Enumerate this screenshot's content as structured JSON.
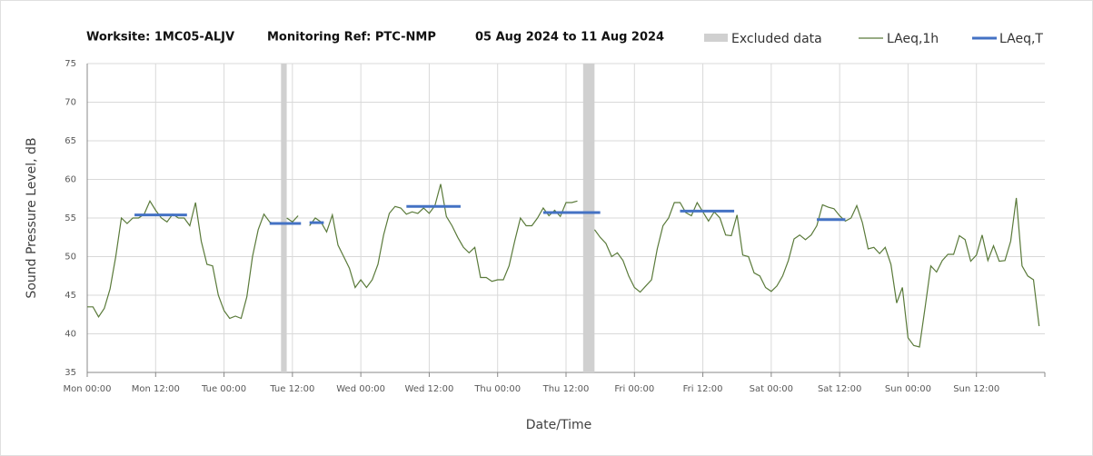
{
  "chart_data": {
    "type": "line",
    "title": "Worksite: 1MC05-ALJV",
    "subtitle": "Monitoring Ref: PTC-NMP",
    "period": "05 Aug 2024 to 11 Aug 2024",
    "xlabel": "Date/Time",
    "ylabel": "Sound Pressure Level, dB",
    "xlim": [
      0,
      168
    ],
    "ylim": [
      35,
      75
    ],
    "yticks": [
      35,
      40,
      45,
      50,
      55,
      60,
      65,
      70,
      75
    ],
    "xticks": [
      {
        "value": 0,
        "label": "Mon 00:00"
      },
      {
        "value": 12,
        "label": "Mon 12:00"
      },
      {
        "value": 24,
        "label": "Tue 00:00"
      },
      {
        "value": 36,
        "label": "Tue 12:00"
      },
      {
        "value": 48,
        "label": "Wed 00:00"
      },
      {
        "value": 60,
        "label": "Wed 12:00"
      },
      {
        "value": 72,
        "label": "Thu 00:00"
      },
      {
        "value": 84,
        "label": "Thu 12:00"
      },
      {
        "value": 96,
        "label": "Fri 00:00"
      },
      {
        "value": 108,
        "label": "Fri 12:00"
      },
      {
        "value": 120,
        "label": "Sat 00:00"
      },
      {
        "value": 132,
        "label": "Sat 12:00"
      },
      {
        "value": 144,
        "label": "Sun 00:00"
      },
      {
        "value": 156,
        "label": "Sun 12:00"
      }
    ],
    "grid": true,
    "legend": "top",
    "excluded": {
      "name": "Excluded data",
      "color": "#d0d0d0",
      "ranges": [
        {
          "start": 34,
          "end": 35
        },
        {
          "start": 87,
          "end": 89
        }
      ]
    },
    "x": [
      0,
      1,
      2,
      3,
      4,
      5,
      6,
      7,
      8,
      9,
      10,
      11,
      12,
      13,
      14,
      15,
      16,
      17,
      18,
      19,
      20,
      21,
      22,
      23,
      24,
      25,
      26,
      27,
      28,
      29,
      30,
      31,
      32,
      33,
      34,
      35,
      36,
      37,
      38,
      39,
      40,
      41,
      42,
      43,
      44,
      45,
      46,
      47,
      48,
      49,
      50,
      51,
      52,
      53,
      54,
      55,
      56,
      57,
      58,
      59,
      60,
      61,
      62,
      63,
      64,
      65,
      66,
      67,
      68,
      69,
      70,
      71,
      72,
      73,
      74,
      75,
      76,
      77,
      78,
      79,
      80,
      81,
      82,
      83,
      84,
      85,
      86,
      87,
      88,
      89,
      90,
      91,
      92,
      93,
      94,
      95,
      96,
      97,
      98,
      99,
      100,
      101,
      102,
      103,
      104,
      105,
      106,
      107,
      108,
      109,
      110,
      111,
      112,
      113,
      114,
      115,
      116,
      117,
      118,
      119,
      120,
      121,
      122,
      123,
      124,
      125,
      126,
      127,
      128,
      129,
      130,
      131,
      132,
      133,
      134,
      135,
      136,
      137,
      138,
      139,
      140,
      141,
      142,
      143,
      144,
      145,
      146,
      147,
      148,
      149,
      150,
      151,
      152,
      153,
      154,
      155,
      156,
      157,
      158,
      159,
      160,
      161,
      162,
      163,
      164,
      165,
      166,
      167
    ],
    "series": [
      {
        "name": "LAeq,1h",
        "color": "#5a7a3a",
        "values": [
          43.5,
          43.5,
          42.2,
          43.3,
          45.8,
          50,
          55,
          54.3,
          55,
          55,
          55.5,
          57.2,
          56,
          55,
          54.5,
          55.5,
          55,
          55,
          54,
          57,
          52,
          49,
          48.8,
          45,
          43,
          42,
          42.3,
          42,
          44.8,
          50,
          53.5,
          55.5,
          54.5,
          54.2,
          null,
          55,
          54.5,
          55.3,
          null,
          54,
          55,
          54.5,
          53.2,
          55.4,
          51.5,
          50,
          48.5,
          46,
          47,
          46,
          47,
          49,
          52.8,
          55.6,
          56.5,
          56.3,
          55.5,
          55.8,
          55.6,
          56.3,
          55.6,
          56.6,
          59.4,
          55.2,
          54,
          52.5,
          51.2,
          50.5,
          51.2,
          47.3,
          47.3,
          46.8,
          47,
          47,
          48.8,
          52,
          55,
          54,
          54,
          55,
          56.3,
          55.3,
          56,
          55.2,
          57,
          57,
          57.2,
          null,
          null,
          53.5,
          52.5,
          51.7,
          50,
          50.5,
          49.5,
          47.5,
          46,
          45.4,
          46.2,
          47,
          51,
          54,
          55,
          57,
          57,
          55.7,
          55.3,
          57,
          55.8,
          54.6,
          55.8,
          55,
          52.8,
          52.7,
          55.4,
          50.2,
          50,
          47.9,
          47.5,
          46,
          45.5,
          46.2,
          47.5,
          49.5,
          52.3,
          52.8,
          52.2,
          52.8,
          54,
          56.7,
          56.4,
          56.2,
          55.3,
          54.6,
          55,
          56.6,
          54.4,
          51,
          51.2,
          50.4,
          51.2,
          49,
          44,
          46,
          39.5,
          38.5,
          38.3,
          43.5,
          48.8,
          48,
          49.5,
          50.3,
          50.3,
          52.7,
          52.2,
          49.4,
          50.2,
          52.8,
          49.5,
          51.4,
          49.4,
          49.5,
          52,
          57.6,
          48.8,
          47.5,
          47,
          41
        ]
      },
      {
        "name": "LAeq,T",
        "color": "#4472c4",
        "segments": [
          {
            "start": 8.3,
            "end": 17.5,
            "value": 55.4
          },
          {
            "start": 32,
            "end": 37.5,
            "value": 54.3
          },
          {
            "start": 39,
            "end": 41.5,
            "value": 54.4
          },
          {
            "start": 56,
            "end": 65.5,
            "value": 56.5
          },
          {
            "start": 80,
            "end": 90,
            "value": 55.7
          },
          {
            "start": 104,
            "end": 113.5,
            "value": 55.9
          },
          {
            "start": 128,
            "end": 133,
            "value": 54.8
          }
        ]
      }
    ]
  }
}
